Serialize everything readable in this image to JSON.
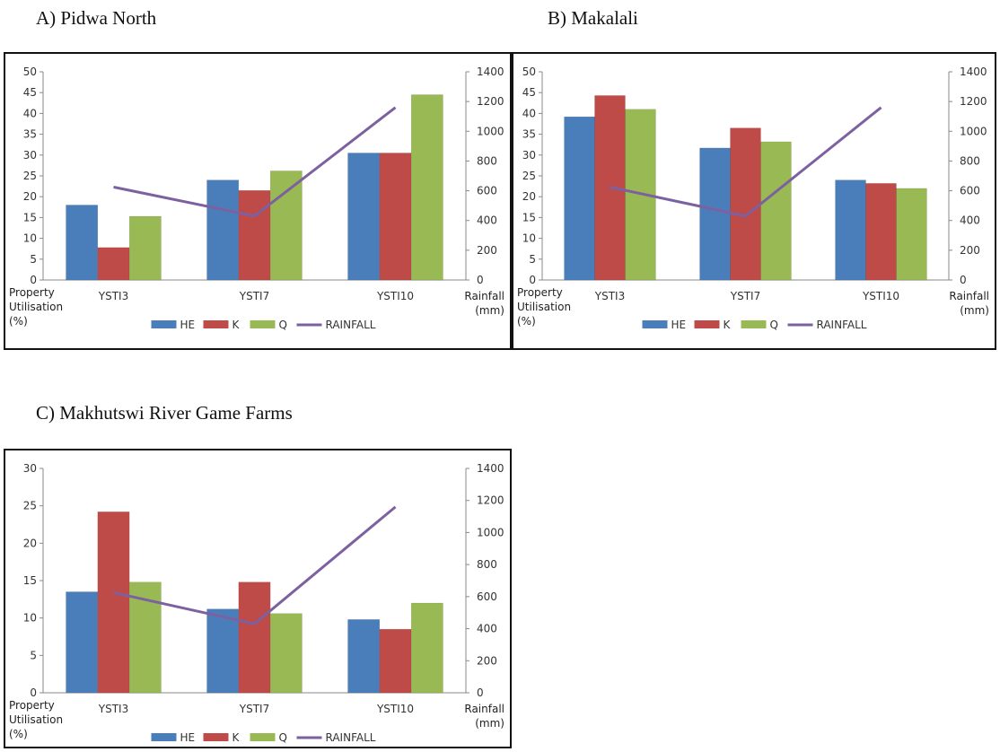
{
  "panels": [
    {
      "title": "A)  Pidwa North"
    },
    {
      "title": "B) Makalali"
    },
    {
      "title": "C)  Makhutswi River Game Farms"
    }
  ],
  "colors": {
    "HE": "#4a7ebb",
    "K": "#be4b48",
    "Q": "#98b954",
    "RAINFALL": "#7d60a0"
  },
  "chart_data": [
    {
      "type": "bar",
      "title": "A)  Pidwa North",
      "categories": [
        "YSTI3",
        "YSTI7",
        "YSTI10"
      ],
      "ylabel": [
        "Property",
        "Utilisation",
        "(%)"
      ],
      "y2label": [
        "Rainfall",
        "(mm)"
      ],
      "ylim": [
        0,
        50
      ],
      "yticks": [
        0,
        5,
        10,
        15,
        20,
        25,
        30,
        35,
        40,
        45,
        50
      ],
      "y2lim": [
        0,
        1400
      ],
      "y2ticks": [
        0,
        200,
        400,
        600,
        800,
        1000,
        1200,
        1400
      ],
      "legend_position": "bottom",
      "series": [
        {
          "name": "HE",
          "values": [
            18,
            24,
            30.5
          ]
        },
        {
          "name": "K",
          "values": [
            7.8,
            21.5,
            30.5
          ]
        },
        {
          "name": "Q",
          "values": [
            15.3,
            26.2,
            44.5
          ]
        },
        {
          "name": "RAINFALL",
          "type": "line",
          "axis": "right",
          "values": [
            625,
            430,
            1160
          ]
        }
      ]
    },
    {
      "type": "bar",
      "title": "B) Makalali",
      "categories": [
        "YSTI3",
        "YSTI7",
        "YSTI10"
      ],
      "ylabel": [
        "Property",
        "Utilisation",
        "(%)"
      ],
      "y2label": [
        "Rainfall",
        "(mm)"
      ],
      "ylim": [
        0,
        50
      ],
      "yticks": [
        0,
        5,
        10,
        15,
        20,
        25,
        30,
        35,
        40,
        45,
        50
      ],
      "y2lim": [
        0,
        1400
      ],
      "y2ticks": [
        0,
        200,
        400,
        600,
        800,
        1000,
        1200,
        1400
      ],
      "legend_position": "bottom",
      "series": [
        {
          "name": "HE",
          "values": [
            39.2,
            31.7,
            24
          ]
        },
        {
          "name": "K",
          "values": [
            44.3,
            36.5,
            23.2
          ]
        },
        {
          "name": "Q",
          "values": [
            41,
            33.2,
            22
          ]
        },
        {
          "name": "RAINFALL",
          "type": "line",
          "axis": "right",
          "values": [
            625,
            430,
            1160
          ]
        }
      ]
    },
    {
      "type": "bar",
      "title": "C)  Makhutswi River Game Farms",
      "categories": [
        "YSTI3",
        "YSTI7",
        "YSTI10"
      ],
      "ylabel": [
        "Property",
        "Utilisation",
        "(%)"
      ],
      "y2label": [
        "Rainfall",
        "(mm)"
      ],
      "ylim": [
        0,
        30
      ],
      "yticks": [
        0,
        5,
        10,
        15,
        20,
        25,
        30
      ],
      "y2lim": [
        0,
        1400
      ],
      "y2ticks": [
        0,
        200,
        400,
        600,
        800,
        1000,
        1200,
        1400
      ],
      "legend_position": "bottom",
      "series": [
        {
          "name": "HE",
          "values": [
            13.5,
            11.2,
            9.8
          ]
        },
        {
          "name": "K",
          "values": [
            24.2,
            14.8,
            8.5
          ]
        },
        {
          "name": "Q",
          "values": [
            14.8,
            10.6,
            12
          ]
        },
        {
          "name": "RAINFALL",
          "type": "line",
          "axis": "right",
          "values": [
            625,
            430,
            1160
          ]
        }
      ]
    }
  ]
}
